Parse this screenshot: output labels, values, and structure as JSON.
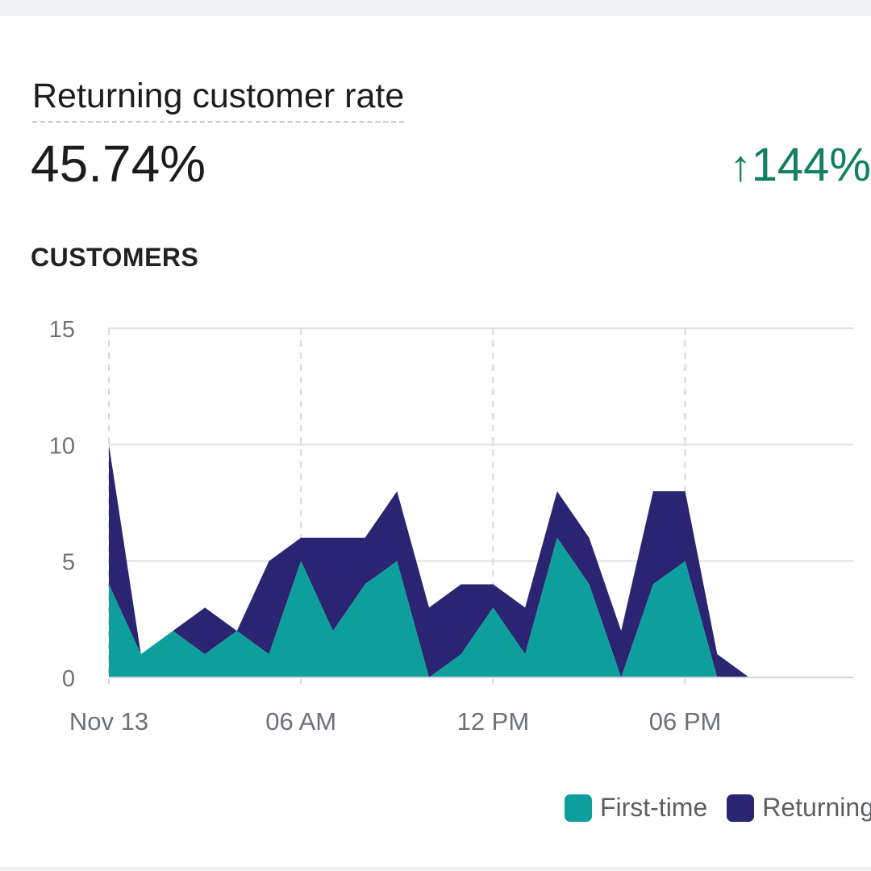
{
  "card": {
    "title": "Returning customer rate",
    "metric": "45.74%",
    "change": {
      "arrow": "↑",
      "value": "144%",
      "color": "#0f8060",
      "direction": "up"
    },
    "section_label": "CUSTOMERS"
  },
  "colors": {
    "first_time": "#0e9f9d",
    "returning": "#2a2472"
  },
  "chart_data": {
    "type": "area",
    "stacked": true,
    "x_label_ticks": [
      "Nov 13",
      "06 AM",
      "12 PM",
      "06 PM"
    ],
    "x_label_hours": [
      0,
      6,
      12,
      18
    ],
    "y_ticks": [
      0,
      5,
      10,
      15
    ],
    "ylim": [
      0,
      15
    ],
    "x_range_hours": [
      0,
      23.25
    ],
    "grid": true,
    "legend_position": "bottom-right",
    "x": [
      0,
      1,
      2,
      3,
      4,
      5,
      6,
      7,
      8,
      9,
      10,
      11,
      12,
      13,
      14,
      15,
      16,
      17,
      18,
      19,
      20
    ],
    "series": [
      {
        "name": "First-time",
        "color": "#0e9f9d",
        "values": [
          4,
          1,
          2,
          1,
          2,
          1,
          5,
          2,
          4,
          5,
          0,
          1,
          3,
          1,
          6,
          4,
          0,
          4,
          5,
          0,
          0
        ]
      },
      {
        "name": "Returning",
        "color": "#2a2472",
        "values": [
          6,
          0,
          0,
          2,
          0,
          4,
          1,
          4,
          2,
          3,
          3,
          3,
          1,
          2,
          2,
          2,
          2,
          4,
          3,
          1,
          0
        ]
      }
    ]
  }
}
